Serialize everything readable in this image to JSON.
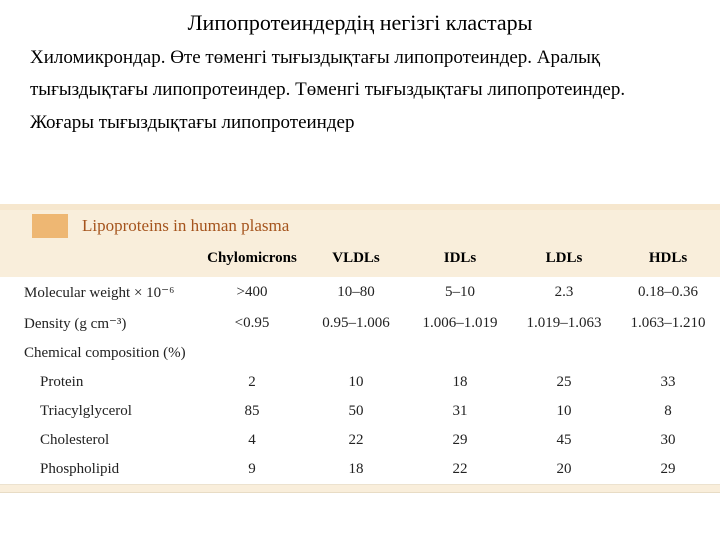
{
  "title": "Липопротеиндердің негізгі кластары",
  "paragraph": "Хиломикрондар. Өте төменгі тығыздықтағы липопротеиндер. Аралық тығыздықтағы липопротеиндер. Төменгі тығыздықтағы липопротеиндер. Жоғары тығыздықтағы липопротеиндер",
  "table": {
    "caption": "Lipoproteins in human plasma",
    "caption_color": "#a5541d",
    "header_bg": "#f9eedb",
    "accent_color": "#eeb773",
    "thin_bar_color": "#f6e7ce",
    "columns": [
      "",
      "Chylomicrons",
      "VLDLs",
      "IDLs",
      "LDLs",
      "HDLs"
    ],
    "rows": [
      {
        "label": "Molecular weight × 10⁻⁶",
        "indent": false,
        "cells": [
          ">400",
          "10–80",
          "5–10",
          "2.3",
          "0.18–0.36"
        ]
      },
      {
        "label": "Density (g cm⁻³)",
        "indent": false,
        "cells": [
          "<0.95",
          "0.95–1.006",
          "1.006–1.019",
          "1.019–1.063",
          "1.063–1.210"
        ]
      },
      {
        "label": "Chemical composition (%)",
        "indent": false,
        "cells": [
          "",
          "",
          "",
          "",
          ""
        ]
      },
      {
        "label": "Protein",
        "indent": true,
        "cells": [
          "2",
          "10",
          "18",
          "25",
          "33"
        ]
      },
      {
        "label": "Triacylglycerol",
        "indent": true,
        "cells": [
          "85",
          "50",
          "31",
          "10",
          "8"
        ]
      },
      {
        "label": "Cholesterol",
        "indent": true,
        "cells": [
          "4",
          "22",
          "29",
          "45",
          "30"
        ]
      },
      {
        "label": "Phospholipid",
        "indent": true,
        "cells": [
          "9",
          "18",
          "22",
          "20",
          "29"
        ]
      }
    ]
  }
}
